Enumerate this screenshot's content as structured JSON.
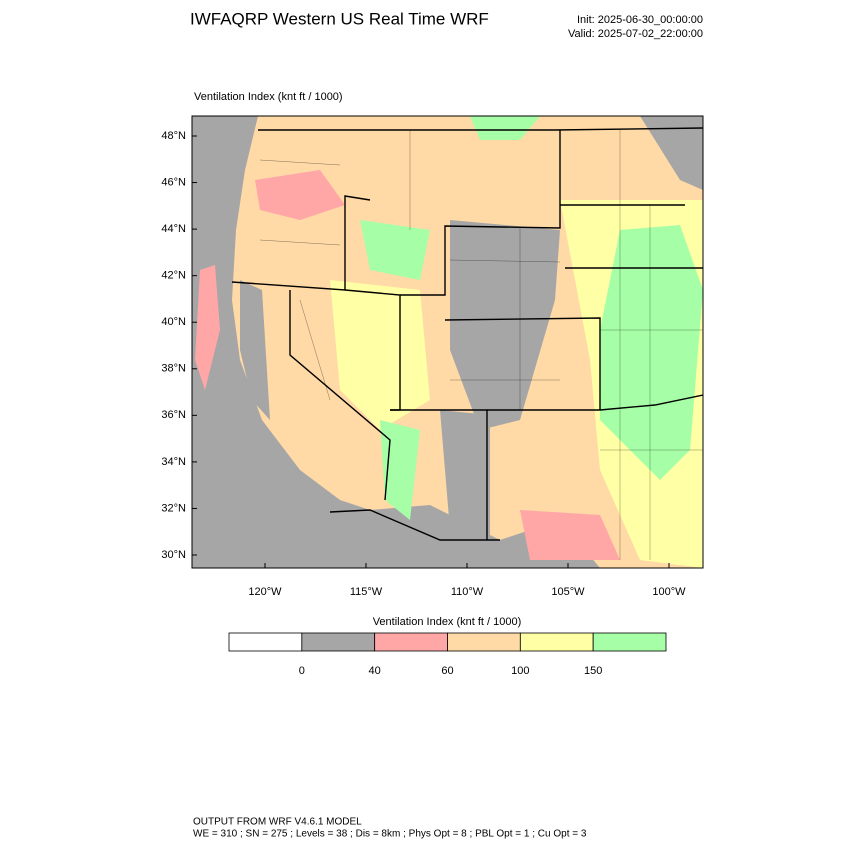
{
  "header": {
    "title": "IWFAQRP Western US Real Time WRF",
    "init": "Init: 2025-06-30_00:00:00",
    "valid": "Valid: 2025-07-02_22:00:00"
  },
  "map": {
    "label": "Ventilation Index   (knt ft / 1000)",
    "lat_ticks": [
      "48°N",
      "46°N",
      "44°N",
      "42°N",
      "40°N",
      "38°N",
      "36°N",
      "34°N",
      "32°N",
      "30°N"
    ],
    "lon_ticks": [
      "120°W",
      "115°W",
      "110°W",
      "105°W",
      "100°W"
    ]
  },
  "colorbar": {
    "title": "Ventilation Index   (knt ft / 1000)",
    "colors": [
      "#ffffff",
      "#a6a6a6",
      "#ffa6a6",
      "#ffd9a6",
      "#ffffa6",
      "#a6ffa6"
    ],
    "boundaries": [
      "0",
      "40",
      "60",
      "100",
      "150"
    ]
  },
  "footer": {
    "line1": "OUTPUT FROM WRF V4.6.1 MODEL",
    "line2": "WE = 310 ; SN = 275 ; Levels = 38 ; Dis = 8km ; Phys Opt = 8 ; PBL Opt = 1 ; Cu Opt = 3"
  }
}
